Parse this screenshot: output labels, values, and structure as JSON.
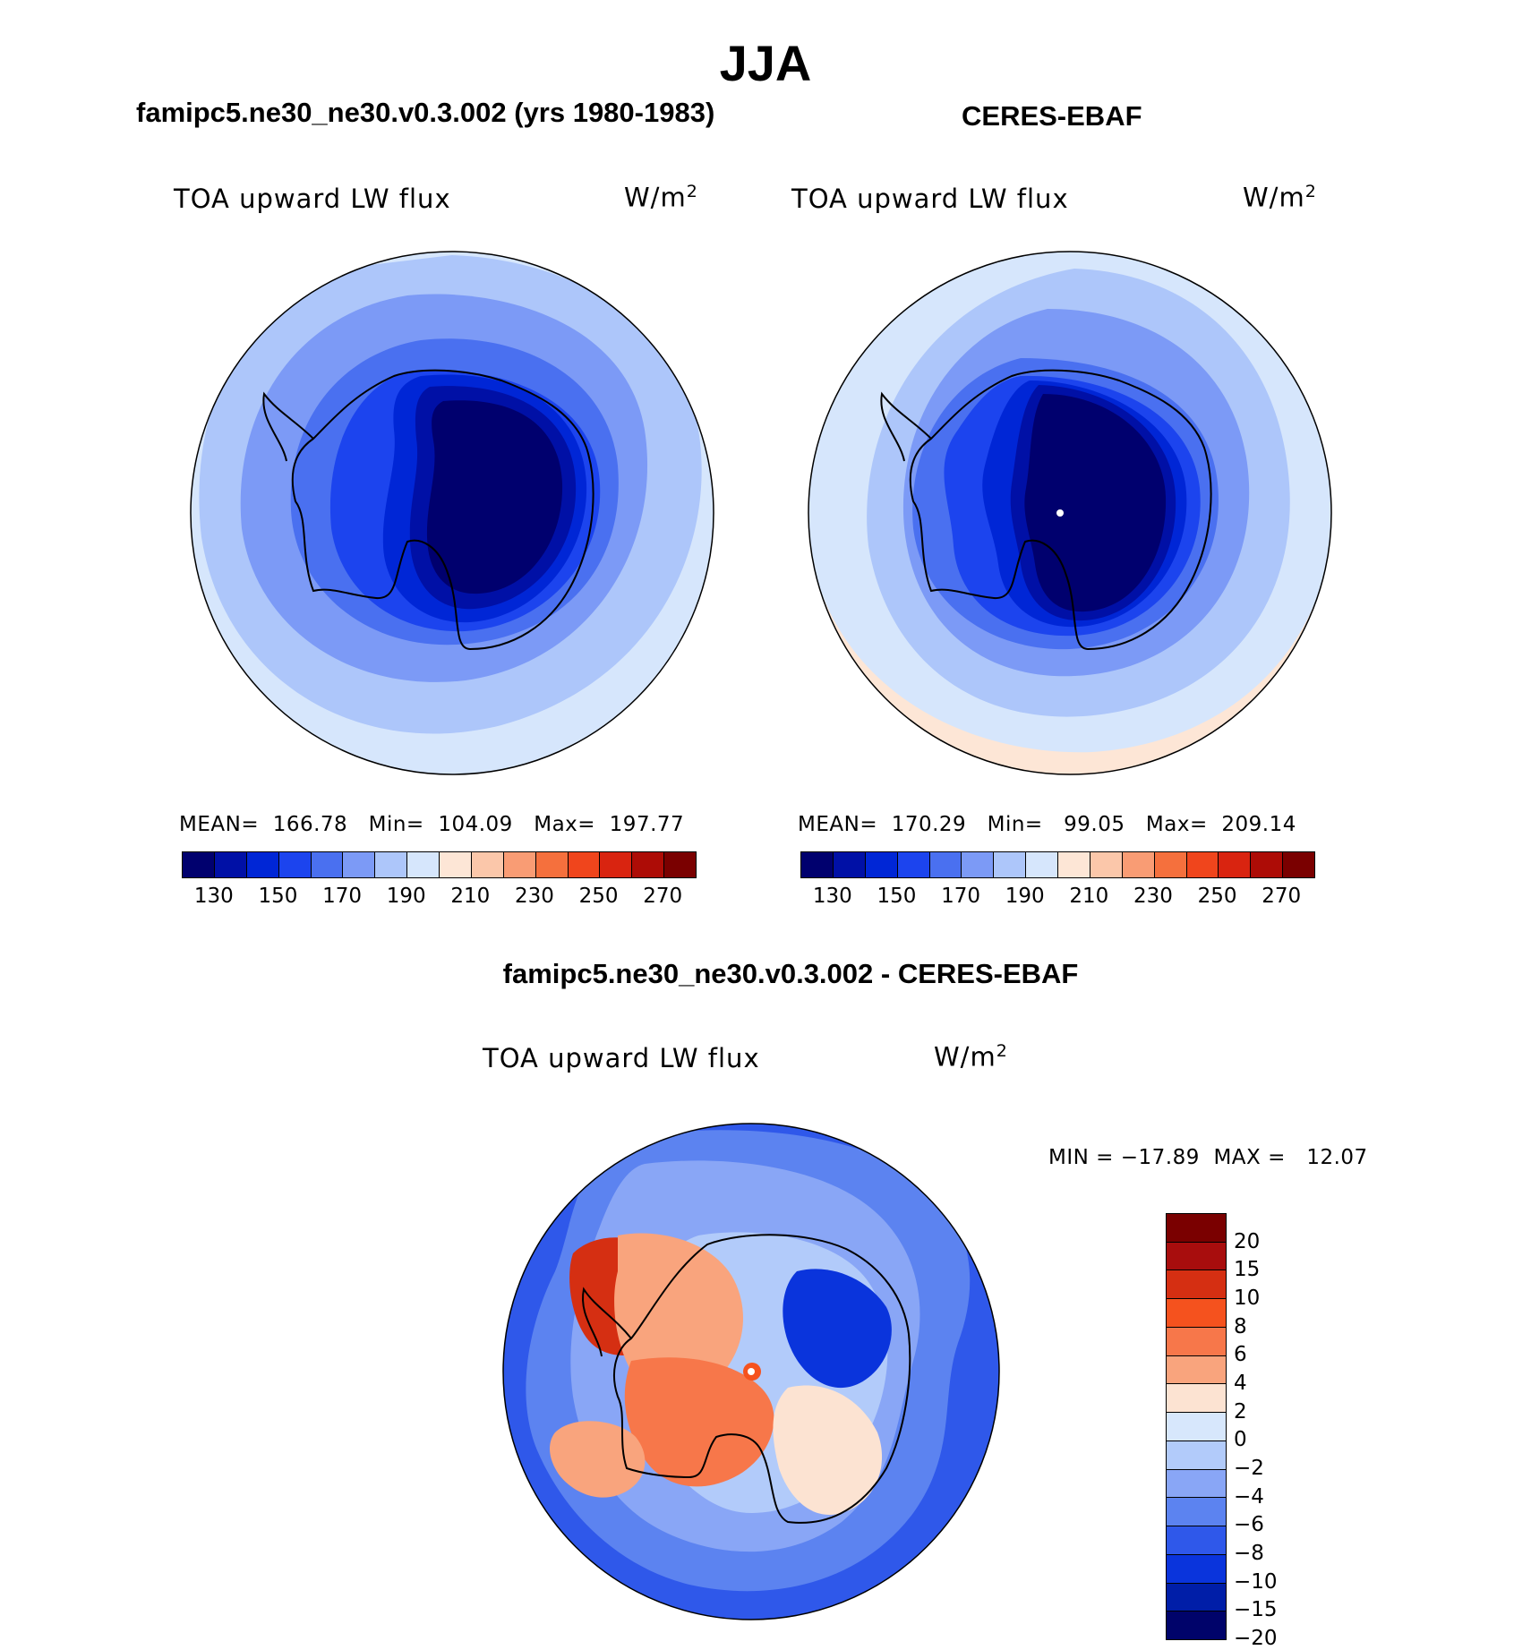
{
  "page_title": "JJA",
  "colors": {
    "abs_scale": [
      "#00006e",
      "#0010a6",
      "#0026d6",
      "#1c44ee",
      "#4a70f0",
      "#7c9af6",
      "#adc6fa",
      "#d6e6fc",
      "#fde6d6",
      "#fbc7aa",
      "#f99c74",
      "#f5703d",
      "#f0451c",
      "#d92410",
      "#ad0c06",
      "#7a0000"
    ],
    "diff_scale": [
      "#7a0000",
      "#a80d0d",
      "#d52f12",
      "#f5521e",
      "#f7774a",
      "#f9a47d",
      "#fce3d2",
      "#d7e7fc",
      "#b2cbfa",
      "#89a6f6",
      "#5c83f0",
      "#2f58ea",
      "#0a34dc",
      "#001ea8",
      "#00036a"
    ]
  },
  "panels": [
    {
      "title": "famipc5.ne30_ne30.v0.3.002 (yrs 1980-1983)",
      "variable": "TOA upward LW flux",
      "units_base": "W/m",
      "units_exp": "2",
      "stats": "MEAN=  166.78   Min=  104.09   Max=  197.77",
      "colorbar_ticks": [
        "130",
        "150",
        "170",
        "190",
        "210",
        "230",
        "250",
        "270"
      ]
    },
    {
      "title": "CERES-EBAF",
      "variable": "TOA upward LW flux",
      "units_base": "W/m",
      "units_exp": "2",
      "stats": "MEAN=  170.29   Min=   99.05   Max=  209.14",
      "colorbar_ticks": [
        "130",
        "150",
        "170",
        "190",
        "210",
        "230",
        "250",
        "270"
      ]
    }
  ],
  "diff_panel": {
    "title": "famipc5.ne30_ne30.v0.3.002 - CERES-EBAF",
    "variable": "TOA upward LW flux",
    "units_base": "W/m",
    "units_exp": "2",
    "stats": "MIN = −17.89  MAX =   12.07",
    "colorbar_ticks": [
      "20",
      "15",
      "10",
      "8",
      "6",
      "4",
      "2",
      "0",
      "−2",
      "−4",
      "−6",
      "−8",
      "−10",
      "−15",
      "−20"
    ]
  }
}
